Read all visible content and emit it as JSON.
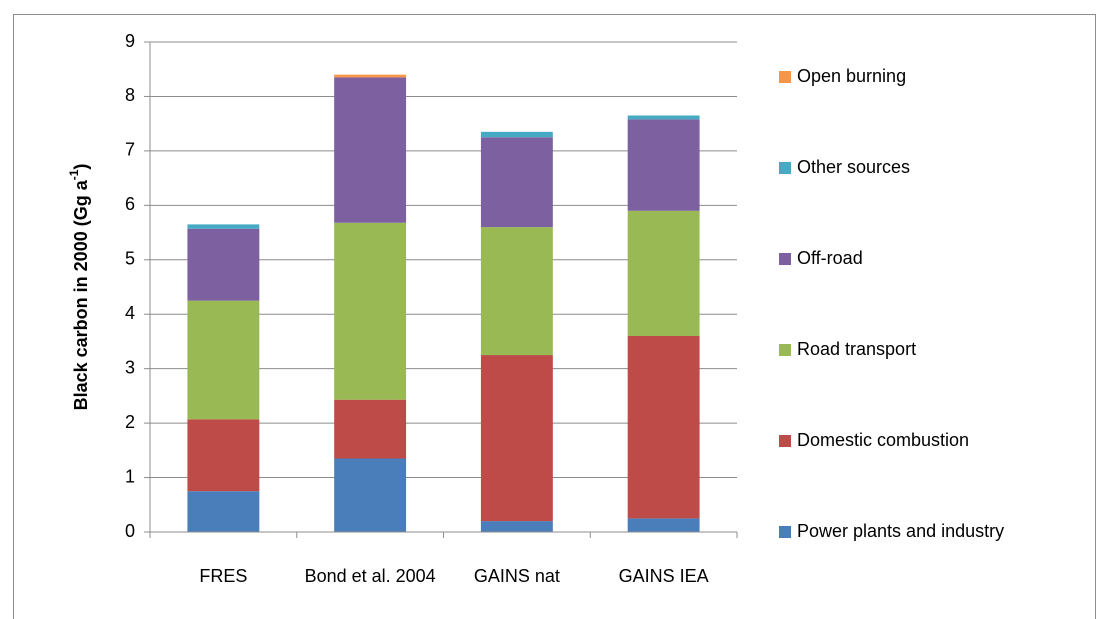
{
  "chart_data": {
    "type": "stacked_bar",
    "y_label": {
      "text": "Black carbon  in 2000 (Gg a",
      "superscript": "-1",
      "suffix": ")"
    },
    "categories": [
      "FRES",
      "Bond et al. 2004",
      "GAINS nat",
      "GAINS IEA"
    ],
    "series": [
      {
        "name": "Power plants and industry",
        "color": "#4a7ebb",
        "values": [
          0.75,
          1.35,
          0.2,
          0.25
        ]
      },
      {
        "name": "Domestic combustion",
        "color": "#be4b48",
        "values": [
          1.32,
          1.08,
          3.05,
          3.35
        ]
      },
      {
        "name": "Road transport",
        "color": "#98b954",
        "values": [
          2.18,
          3.25,
          2.35,
          2.3
        ]
      },
      {
        "name": "Off-road",
        "color": "#7d60a0",
        "values": [
          1.32,
          2.67,
          1.65,
          1.68
        ]
      },
      {
        "name": "Other sources",
        "color": "#46aac5",
        "values": [
          0.08,
          0,
          0.1,
          0.07
        ]
      },
      {
        "name": "Open burning",
        "color": "#f79646",
        "values": [
          0,
          0.05,
          0,
          0
        ]
      }
    ],
    "ylim": [
      0,
      9
    ],
    "yticks": [
      0,
      1,
      2,
      3,
      4,
      5,
      6,
      7,
      8,
      9
    ],
    "grid": true,
    "legend": "right"
  }
}
